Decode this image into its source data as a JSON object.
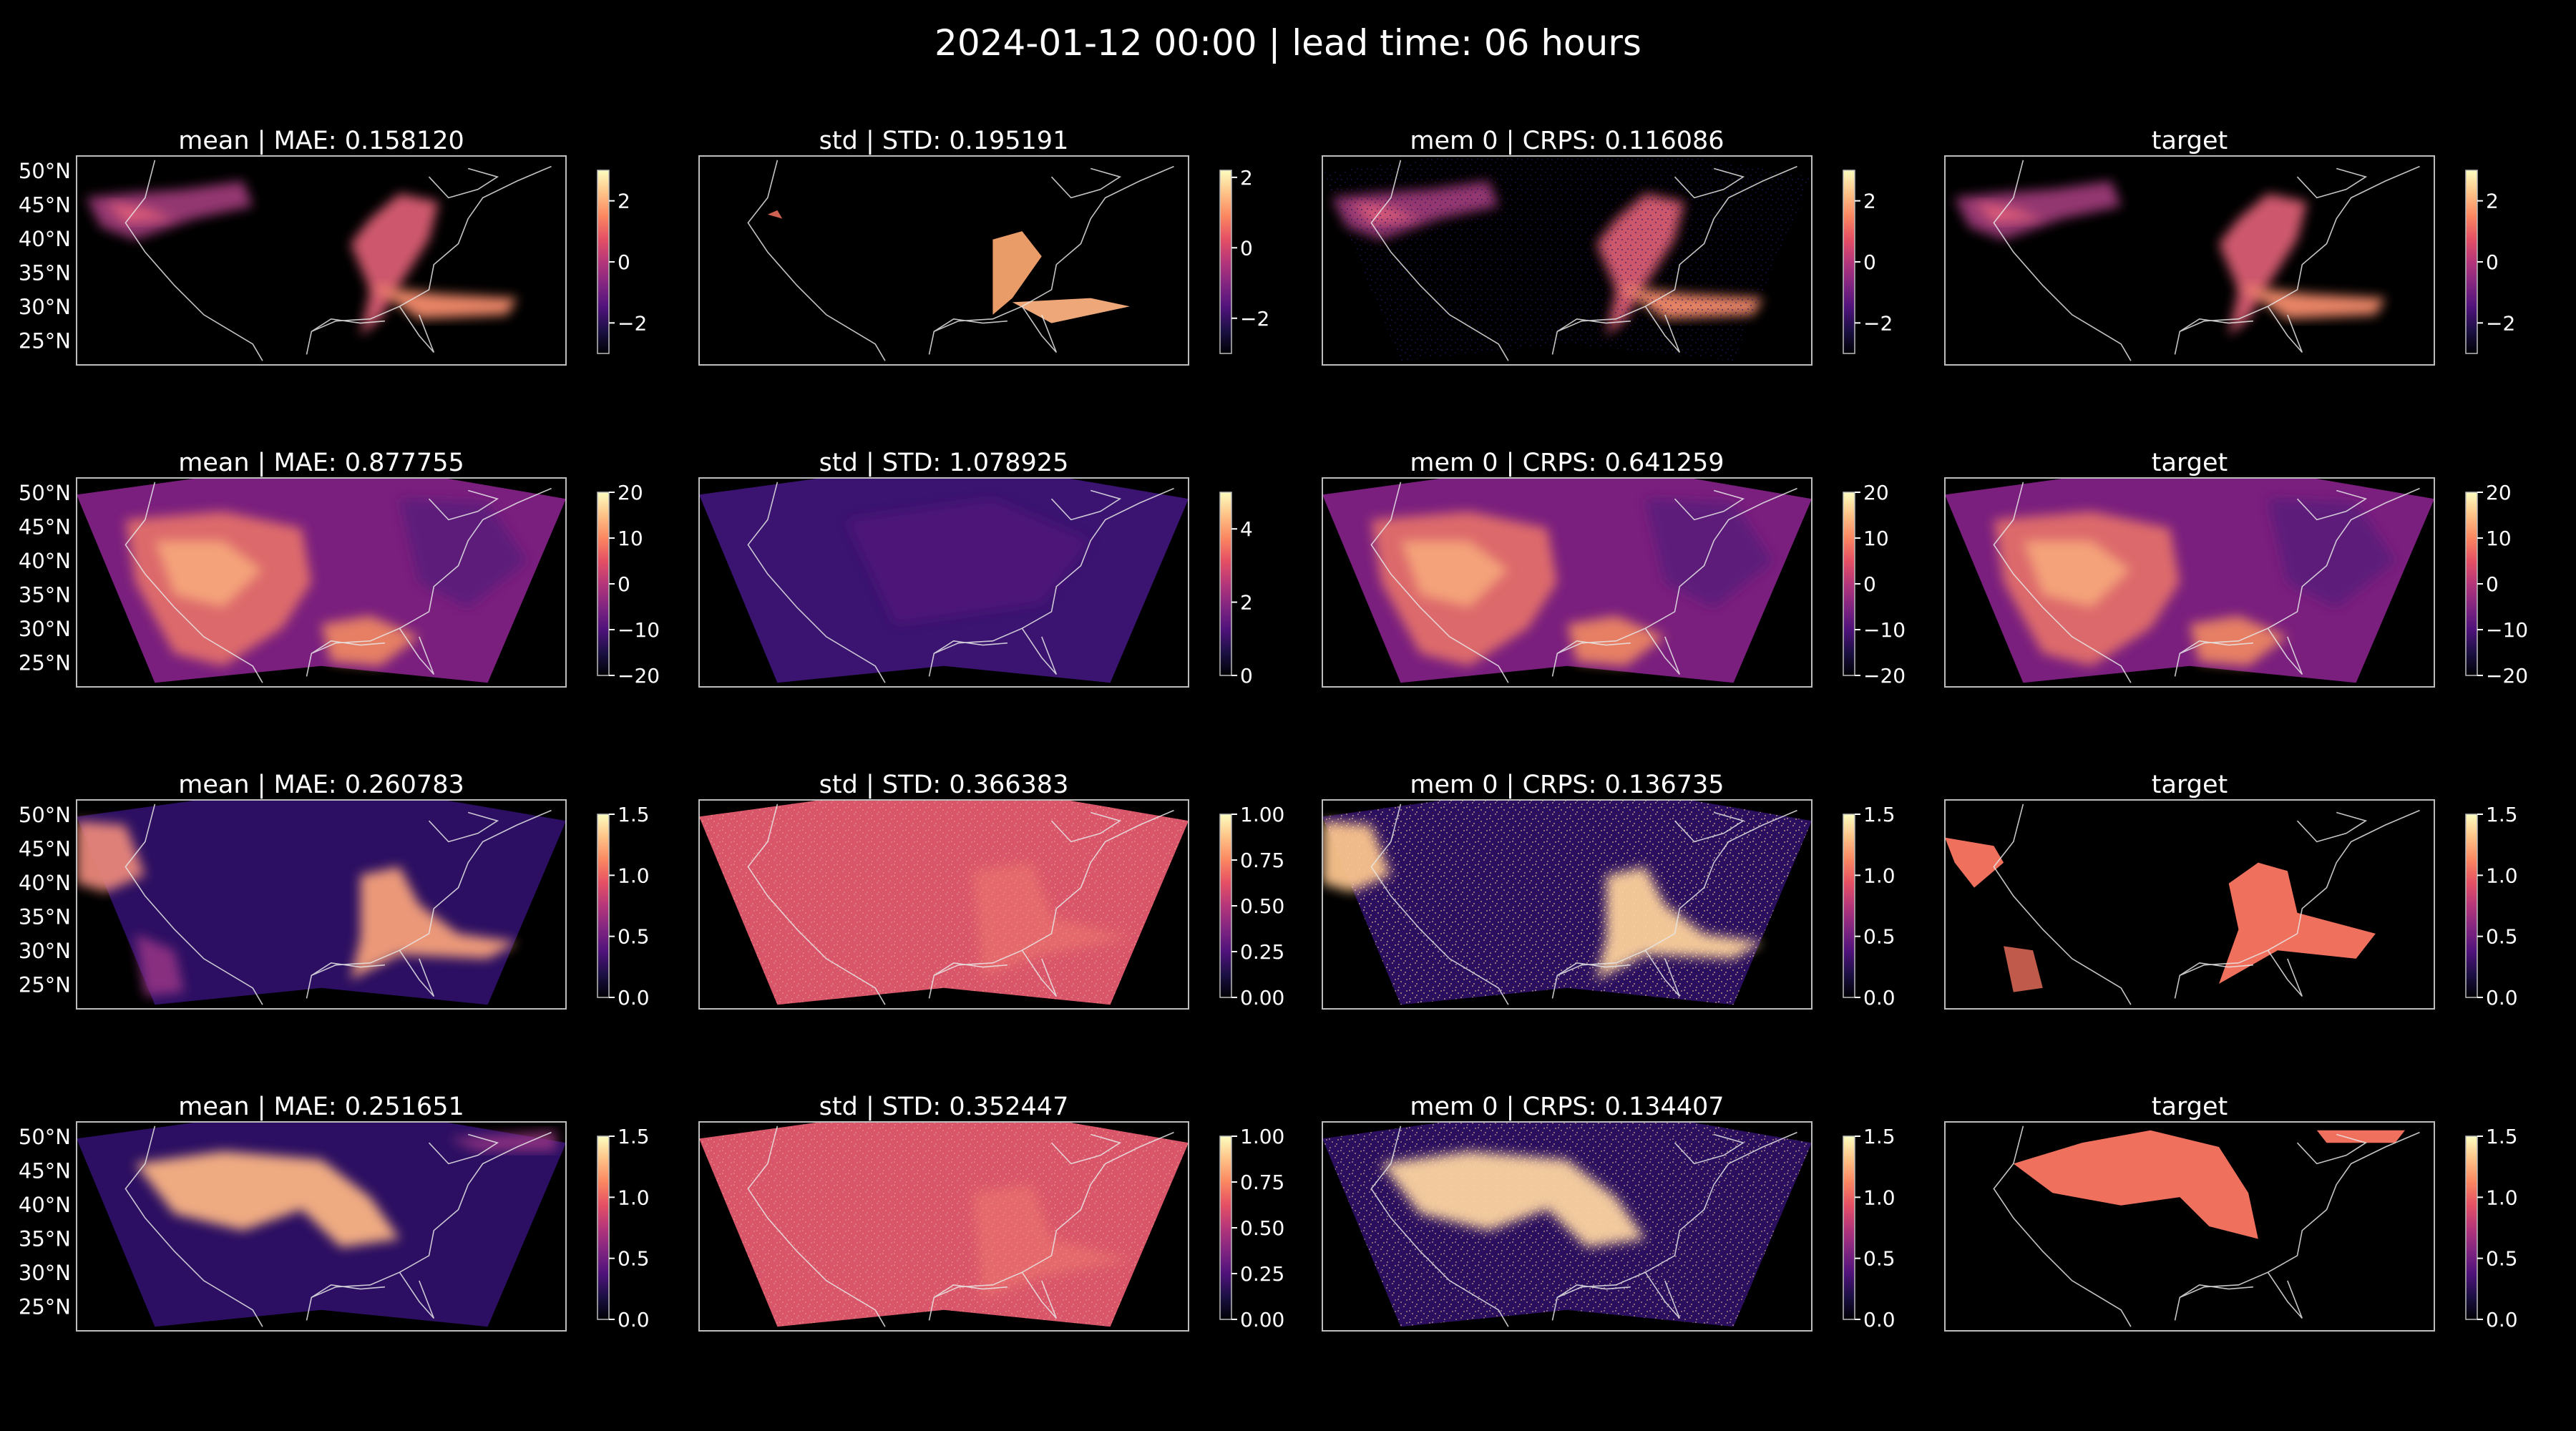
{
  "suptitle": "2024-01-12 00:00 | lead time: 06 hours",
  "colors": {
    "background": "#000000",
    "text": "#ffffff",
    "frame": "#bdbdbd",
    "coast": "#e8e8e8",
    "colormap": "magma"
  },
  "chart_data": {
    "type": "heatmap",
    "colormap": "magma",
    "lat_ticks": [
      "50°N",
      "45°N",
      "40°N",
      "35°N",
      "30°N",
      "25°N"
    ],
    "rows": [
      {
        "panels": [
          {
            "title": "mean | MAE: 0.158120",
            "field": "cloud-blobs",
            "cbar": {
              "min": -3,
              "max": 3,
              "ticks": [
                -2,
                0,
                2
              ],
              "tick_labels": [
                "−2",
                "0",
                "2"
              ]
            }
          },
          {
            "title": "std | STD: 0.195191",
            "field": "std-sparse",
            "cbar": {
              "min": -3,
              "max": 2.2,
              "ticks": [
                -2,
                0,
                2
              ],
              "tick_labels": [
                "−2",
                "0",
                "2"
              ]
            }
          },
          {
            "title": "mem 0 | CRPS: 0.116086",
            "field": "cloud-blobs-noisy",
            "cbar": {
              "min": -3,
              "max": 3,
              "ticks": [
                -2,
                0,
                2
              ],
              "tick_labels": [
                "−2",
                "0",
                "2"
              ]
            }
          },
          {
            "title": "target",
            "field": "cloud-blobs",
            "cbar": {
              "min": -3,
              "max": 3,
              "ticks": [
                -2,
                0,
                2
              ],
              "tick_labels": [
                "−2",
                "0",
                "2"
              ]
            }
          }
        ]
      },
      {
        "panels": [
          {
            "title": "mean | MAE: 0.877755",
            "field": "temperature",
            "cbar": {
              "min": -20,
              "max": 20,
              "ticks": [
                -20,
                -10,
                0,
                10,
                20
              ],
              "tick_labels": [
                "−20",
                "−10",
                "0",
                "10",
                "20"
              ]
            }
          },
          {
            "title": "std | STD: 1.078925",
            "field": "std-low",
            "cbar": {
              "min": 0,
              "max": 5,
              "ticks": [
                0,
                2,
                4
              ],
              "tick_labels": [
                "0",
                "2",
                "4"
              ]
            }
          },
          {
            "title": "mem 0 | CRPS: 0.641259",
            "field": "temperature",
            "cbar": {
              "min": -20,
              "max": 20,
              "ticks": [
                -20,
                -10,
                0,
                10,
                20
              ],
              "tick_labels": [
                "−20",
                "−10",
                "0",
                "10",
                "20"
              ]
            }
          },
          {
            "title": "target",
            "field": "temperature",
            "cbar": {
              "min": -20,
              "max": 20,
              "ticks": [
                -20,
                -10,
                0,
                10,
                20
              ],
              "tick_labels": [
                "−20",
                "−10",
                "0",
                "10",
                "20"
              ]
            }
          }
        ]
      },
      {
        "panels": [
          {
            "title": "mean | MAE: 0.260783",
            "field": "precip-mean",
            "cbar": {
              "min": 0,
              "max": 1.5,
              "ticks": [
                0,
                0.5,
                1,
                1.5
              ],
              "tick_labels": [
                "0.0",
                "0.5",
                "1.0",
                "1.5"
              ]
            }
          },
          {
            "title": "std | STD: 0.366383",
            "field": "std-high",
            "cbar": {
              "min": 0,
              "max": 1,
              "ticks": [
                0,
                0.25,
                0.5,
                0.75,
                1
              ],
              "tick_labels": [
                "0.00",
                "0.25",
                "0.50",
                "0.75",
                "1.00"
              ]
            }
          },
          {
            "title": "mem 0 | CRPS: 0.136735",
            "field": "precip-noisy",
            "cbar": {
              "min": 0,
              "max": 1.5,
              "ticks": [
                0,
                0.5,
                1,
                1.5
              ],
              "tick_labels": [
                "0.0",
                "0.5",
                "1.0",
                "1.5"
              ]
            }
          },
          {
            "title": "target",
            "field": "precip-mask",
            "cbar": {
              "min": 0,
              "max": 1.5,
              "ticks": [
                0,
                0.5,
                1,
                1.5
              ],
              "tick_labels": [
                "0.0",
                "0.5",
                "1.0",
                "1.5"
              ]
            }
          }
        ]
      },
      {
        "panels": [
          {
            "title": "mean | MAE: 0.251651",
            "field": "snow-mean",
            "cbar": {
              "min": 0,
              "max": 1.5,
              "ticks": [
                0,
                0.5,
                1,
                1.5
              ],
              "tick_labels": [
                "0.0",
                "0.5",
                "1.0",
                "1.5"
              ]
            }
          },
          {
            "title": "std | STD: 0.352447",
            "field": "std-high-2",
            "cbar": {
              "min": 0,
              "max": 1,
              "ticks": [
                0,
                0.25,
                0.5,
                0.75,
                1
              ],
              "tick_labels": [
                "0.00",
                "0.25",
                "0.50",
                "0.75",
                "1.00"
              ]
            }
          },
          {
            "title": "mem 0 | CRPS: 0.134407",
            "field": "snow-noisy",
            "cbar": {
              "min": 0,
              "max": 1.5,
              "ticks": [
                0,
                0.5,
                1,
                1.5
              ],
              "tick_labels": [
                "0.0",
                "0.5",
                "1.0",
                "1.5"
              ]
            }
          },
          {
            "title": "target",
            "field": "snow-mask",
            "cbar": {
              "min": 0,
              "max": 1.5,
              "ticks": [
                0,
                0.5,
                1,
                1.5
              ],
              "tick_labels": [
                "0.0",
                "0.5",
                "1.0",
                "1.5"
              ]
            }
          }
        ]
      }
    ]
  }
}
